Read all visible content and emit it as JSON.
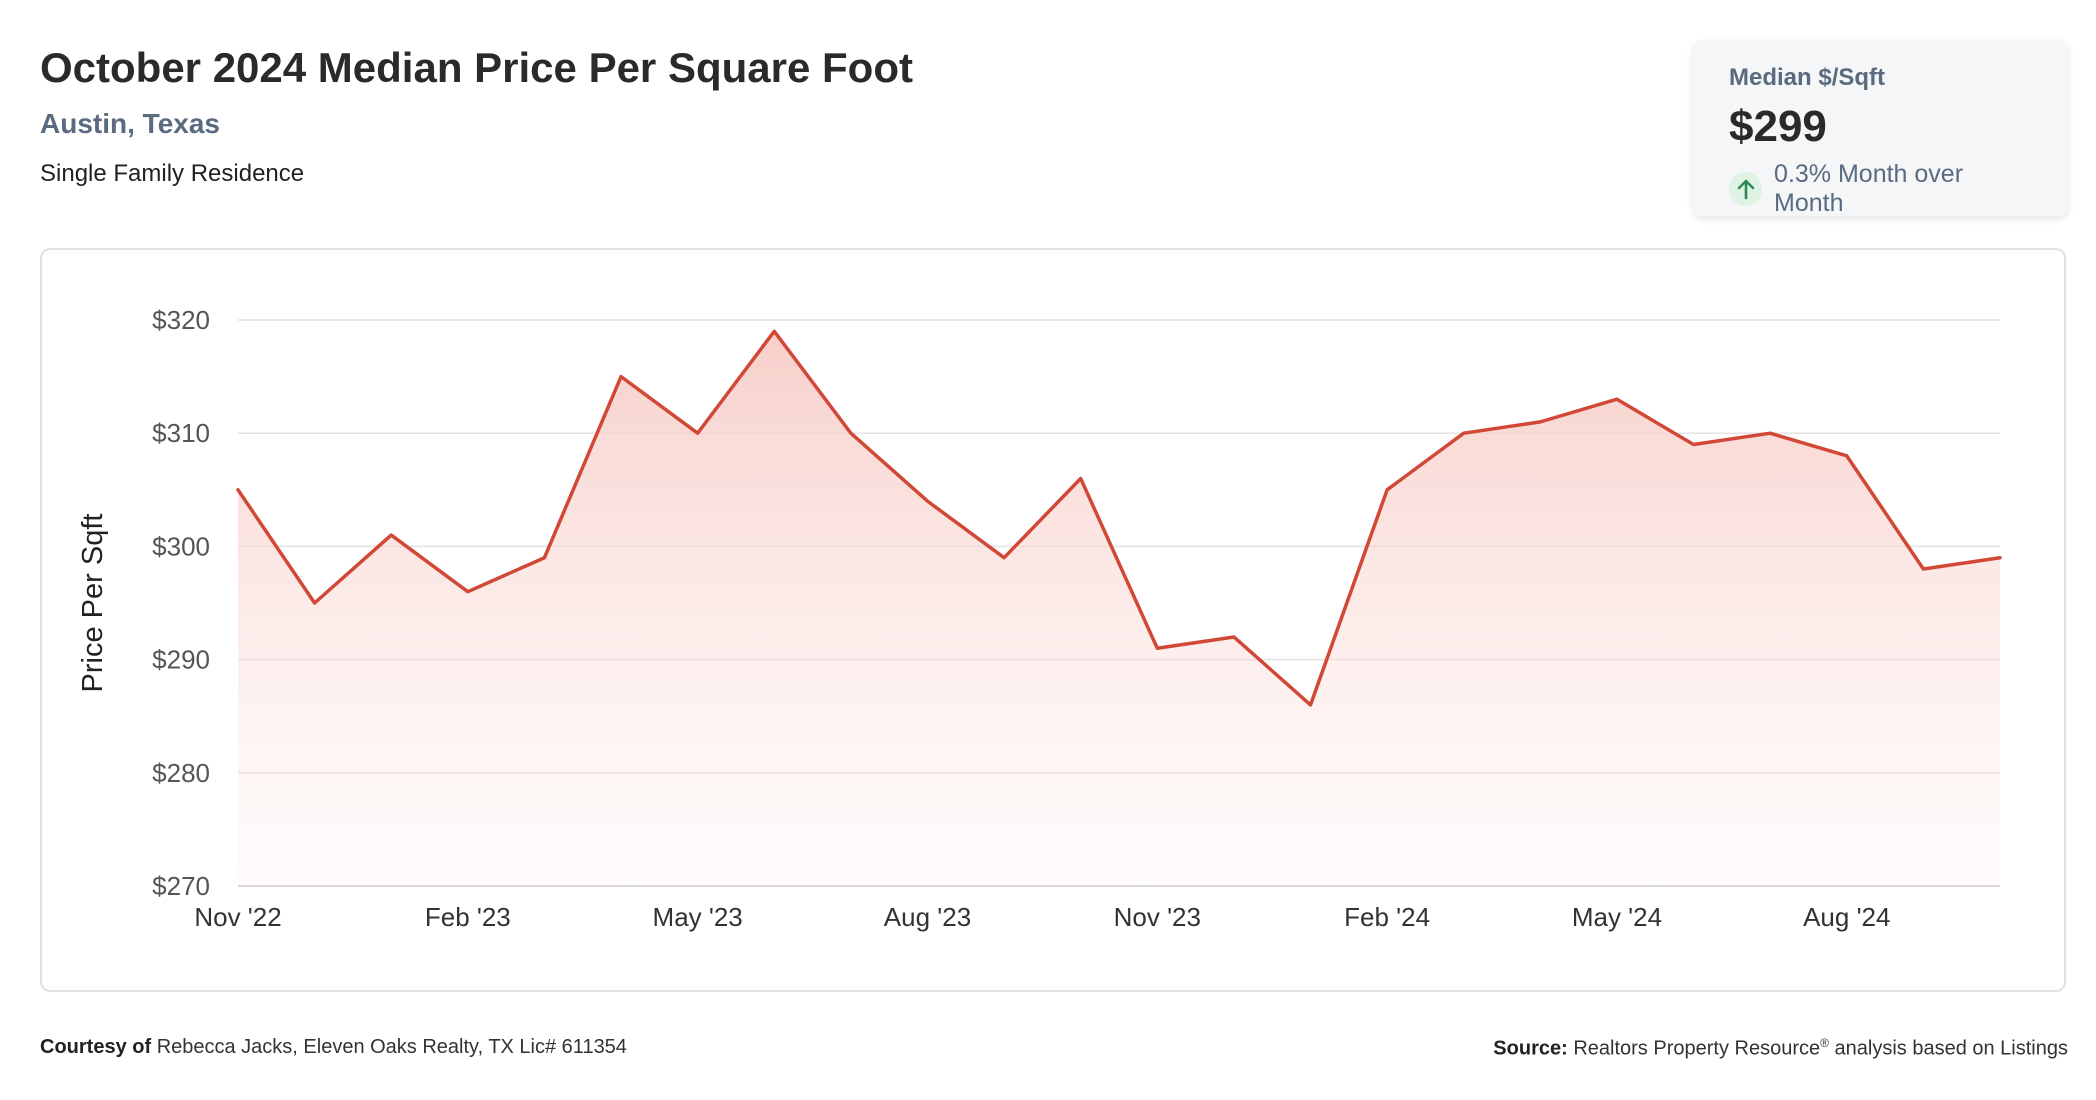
{
  "header": {
    "title": "October 2024 Median Price Per Square Foot",
    "location": "Austin, Texas",
    "property_type": "Single Family Residence"
  },
  "kpi": {
    "label": "Median $/Sqft",
    "value": "$299",
    "change": "0.3% Month over Month",
    "icon": "arrow-up-icon"
  },
  "chart_data": {
    "type": "area",
    "title": "",
    "xlabel": "",
    "ylabel": "Price Per Sqft",
    "ylim": [
      270,
      320
    ],
    "y_ticks": [
      {
        "value": 320,
        "label": "$320"
      },
      {
        "value": 310,
        "label": "$310"
      },
      {
        "value": 300,
        "label": "$300"
      },
      {
        "value": 290,
        "label": "$290"
      },
      {
        "value": 280,
        "label": "$280"
      },
      {
        "value": 270,
        "label": "$270"
      }
    ],
    "x": [
      "Nov '22",
      "Dec '22",
      "Jan '23",
      "Feb '23",
      "Mar '23",
      "Apr '23",
      "May '23",
      "Jun '23",
      "Jul '23",
      "Aug '23",
      "Sep '23",
      "Oct '23",
      "Nov '23",
      "Dec '23",
      "Jan '24",
      "Feb '24",
      "Mar '24",
      "Apr '24",
      "May '24",
      "Jun '24",
      "Jul '24",
      "Aug '24",
      "Sep '24",
      "Oct '24"
    ],
    "x_tick_labels": [
      {
        "index": 0,
        "label": "Nov '22"
      },
      {
        "index": 3,
        "label": "Feb '23"
      },
      {
        "index": 6,
        "label": "May '23"
      },
      {
        "index": 9,
        "label": "Aug '23"
      },
      {
        "index": 12,
        "label": "Nov '23"
      },
      {
        "index": 15,
        "label": "Feb '24"
      },
      {
        "index": 18,
        "label": "May '24"
      },
      {
        "index": 21,
        "label": "Aug '24"
      }
    ],
    "series": [
      {
        "values": [
          305,
          295,
          301,
          296,
          299,
          315,
          310,
          319,
          310,
          304,
          299,
          306,
          291,
          292,
          286,
          305,
          310,
          311,
          313,
          309,
          310,
          308,
          298,
          299
        ]
      }
    ],
    "grid": true,
    "line_color": "#d14836",
    "fill_color": "#f7c8c2"
  },
  "footer": {
    "courtesy_label": "Courtesy of",
    "courtesy_text": "Rebecca Jacks, Eleven Oaks Realty, TX Lic# 611354",
    "source_label": "Source:",
    "source_text_1": "Realtors Property Resource",
    "source_sup": "®",
    "source_text_2": "analysis based on Listings"
  }
}
